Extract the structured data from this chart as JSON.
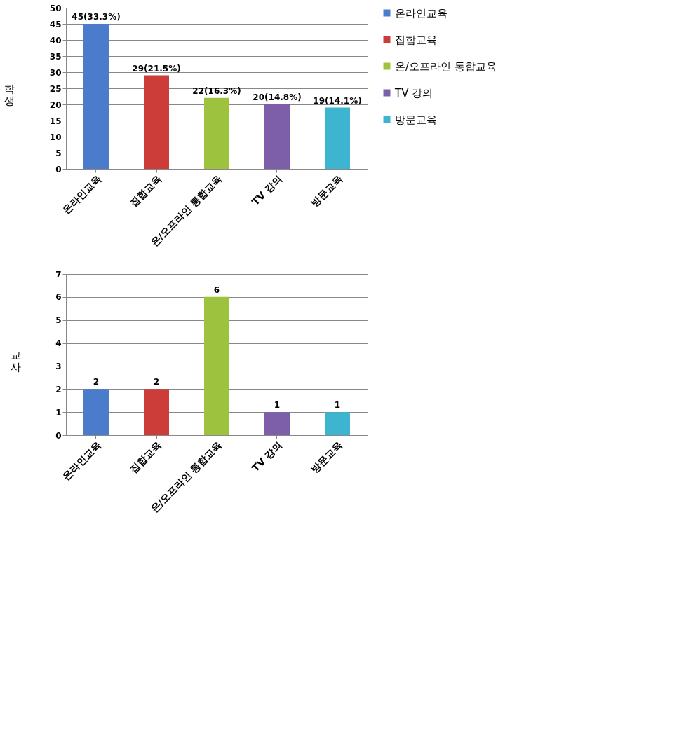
{
  "chart_data": [
    {
      "type": "bar",
      "ylabel": "학생",
      "categories": [
        "온라인교육",
        "집합교육",
        "온/오프라인 통합교육",
        "TV 강의",
        "방문교육"
      ],
      "series": [
        {
          "name": "온라인교육",
          "color": "#4a7ccb",
          "values": [
            45,
            null,
            null,
            null,
            null
          ],
          "value_labels": [
            "45(33.3%)",
            null,
            null,
            null,
            null
          ]
        },
        {
          "name": "집합교육",
          "color": "#cc3d3a",
          "values": [
            null,
            29,
            null,
            null,
            null
          ],
          "value_labels": [
            null,
            "29(21.5%)",
            null,
            null,
            null
          ]
        },
        {
          "name": "온/오프라인 통합교육",
          "color": "#9cc23e",
          "values": [
            null,
            null,
            22,
            null,
            null
          ],
          "value_labels": [
            null,
            null,
            "22(16.3%)",
            null,
            null
          ]
        },
        {
          "name": "TV 강의",
          "color": "#7d5ea8",
          "values": [
            null,
            null,
            null,
            20,
            null
          ],
          "value_labels": [
            null,
            null,
            null,
            "20(14.8%)",
            null
          ]
        },
        {
          "name": "방문교육",
          "color": "#3db4d0",
          "values": [
            null,
            null,
            null,
            null,
            19
          ],
          "value_labels": [
            null,
            null,
            null,
            null,
            "19(14.1%)"
          ]
        }
      ],
      "ylim": [
        0,
        50
      ],
      "yticks": [
        0,
        5,
        10,
        15,
        20,
        25,
        30,
        35,
        40,
        45,
        50
      ],
      "grid": "y",
      "legend": "right"
    },
    {
      "type": "bar",
      "ylabel": "교사",
      "categories": [
        "온라인교육",
        "집합교육",
        "온/오프라인 통합교육",
        "TV 강의",
        "방문교육"
      ],
      "data_labels": true,
      "series": [
        {
          "name": "온라인교육",
          "color": "#4a7ccb",
          "values": [
            2,
            null,
            null,
            null,
            null
          ]
        },
        {
          "name": "집합교육",
          "color": "#cc3d3a",
          "values": [
            null,
            2,
            null,
            null,
            null
          ]
        },
        {
          "name": "온/오프라인 통합교육",
          "color": "#9cc23e",
          "values": [
            null,
            null,
            6,
            null,
            null
          ]
        },
        {
          "name": "TV 강의",
          "color": "#7d5ea8",
          "values": [
            null,
            null,
            null,
            1,
            null
          ]
        },
        {
          "name": "방문교육",
          "color": "#3db4d0",
          "values": [
            null,
            null,
            null,
            null,
            1
          ]
        }
      ],
      "ylim": [
        0,
        7
      ],
      "yticks": [
        0,
        1,
        2,
        3,
        4,
        5,
        6,
        7
      ],
      "grid": "y",
      "legend": "right"
    }
  ]
}
